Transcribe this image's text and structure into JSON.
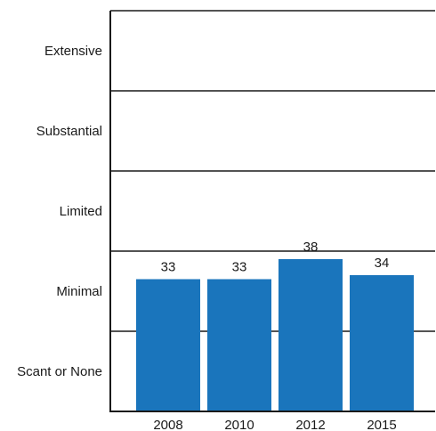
{
  "chart_data": {
    "type": "bar",
    "categories": [
      "2008",
      "2010",
      "2012",
      "2015"
    ],
    "values": [
      33,
      33,
      38,
      34
    ],
    "data_labels": [
      "33",
      "33",
      "38",
      "34"
    ],
    "ylim": [
      0,
      100
    ],
    "bands": [
      "Extensive",
      "Substantial",
      "Limited",
      "Minimal",
      "Scant or None"
    ],
    "grid": "horizontal band dividers",
    "bar_color": "#1a75bc",
    "axis_color": "#1a1a1a"
  }
}
